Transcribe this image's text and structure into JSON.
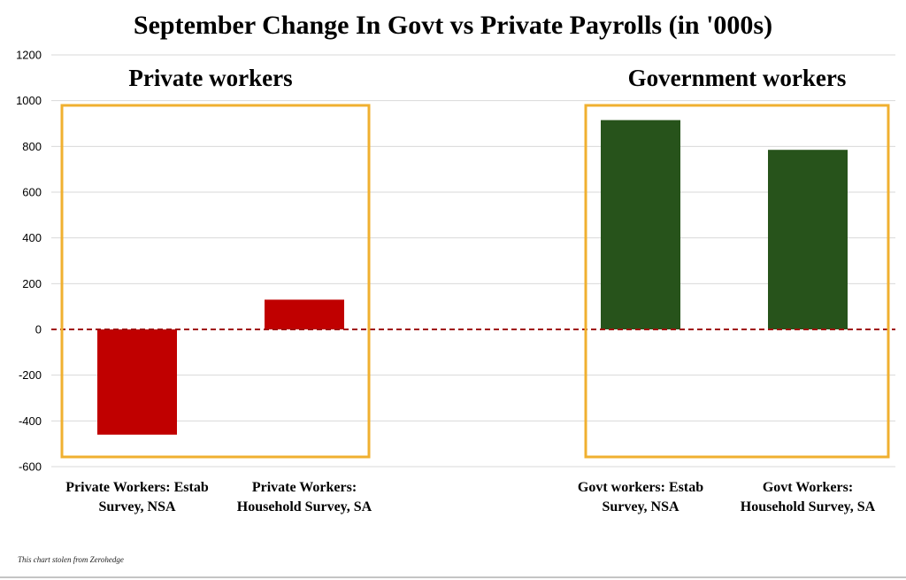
{
  "chart_data": {
    "type": "bar",
    "title": "September Change In Govt vs Private Payrolls (in '000s)",
    "ylim": [
      -600,
      1200
    ],
    "ytick_step": 200,
    "yticks": [
      "1200",
      "1000",
      "800",
      "600",
      "400",
      "200",
      "0",
      "-200",
      "-400",
      "-600"
    ],
    "grid": true,
    "groups": [
      {
        "label": "Private workers",
        "categories": [
          {
            "lines": [
              "Private Workers: Estab",
              "Survey, NSA"
            ],
            "value": -460,
            "color": "#c00000"
          },
          {
            "lines": [
              "Private Workers:",
              "Household Survey, SA"
            ],
            "value": 130,
            "color": "#c00000"
          }
        ]
      },
      {
        "label": "Government workers",
        "categories": [
          {
            "lines": [
              "Govt workers: Estab",
              "Survey, NSA"
            ],
            "value": 915,
            "color": "#27531b"
          },
          {
            "lines": [
              "Govt Workers:",
              "Household Survey, SA"
            ],
            "value": 785,
            "color": "#27531b"
          }
        ]
      }
    ],
    "box_color": "#f0b030",
    "zero_line_color": "#a01010"
  },
  "footnote": "This chart stolen from Zerohedge"
}
